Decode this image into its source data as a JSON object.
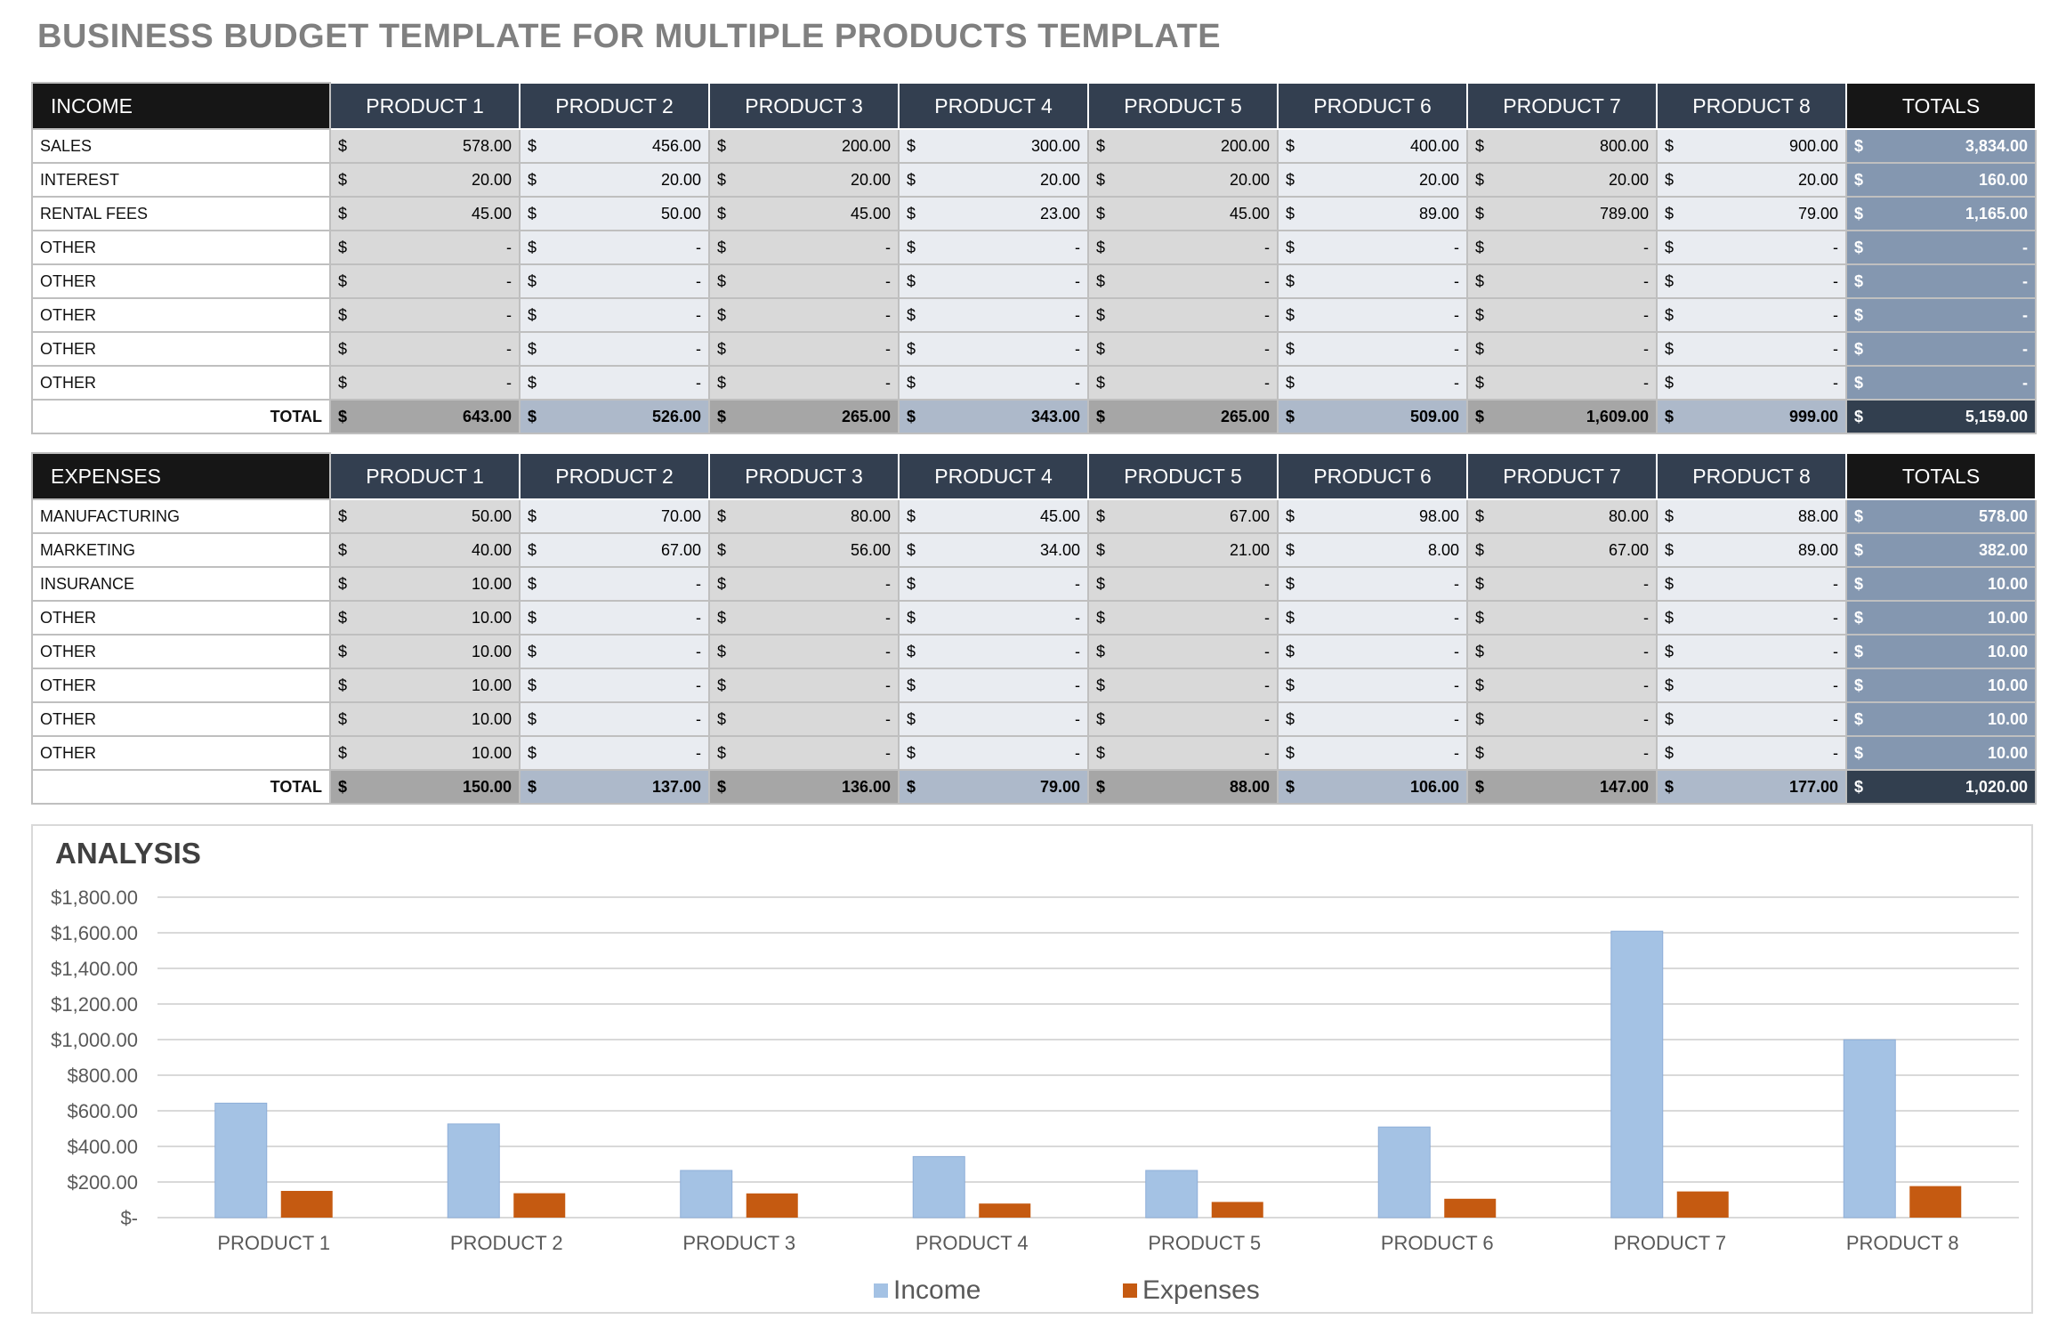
{
  "title": "BUSINESS BUDGET TEMPLATE FOR MULTIPLE PRODUCTS TEMPLATE",
  "columns": [
    "PRODUCT 1",
    "PRODUCT 2",
    "PRODUCT 3",
    "PRODUCT 4",
    "PRODUCT 5",
    "PRODUCT 6",
    "PRODUCT 7",
    "PRODUCT 8"
  ],
  "totals_label": "TOTALS",
  "currency": "$",
  "income": {
    "header": "INCOME",
    "rows": [
      {
        "label": "SALES",
        "values": [
          "578.00",
          "456.00",
          "200.00",
          "300.00",
          "200.00",
          "400.00",
          "800.00",
          "900.00"
        ],
        "total": "3,834.00"
      },
      {
        "label": "INTEREST",
        "values": [
          "20.00",
          "20.00",
          "20.00",
          "20.00",
          "20.00",
          "20.00",
          "20.00",
          "20.00"
        ],
        "total": "160.00"
      },
      {
        "label": "RENTAL FEES",
        "values": [
          "45.00",
          "50.00",
          "45.00",
          "23.00",
          "45.00",
          "89.00",
          "789.00",
          "79.00"
        ],
        "total": "1,165.00"
      },
      {
        "label": "OTHER",
        "values": [
          "-",
          "-",
          "-",
          "-",
          "-",
          "-",
          "-",
          "-"
        ],
        "total": "-"
      },
      {
        "label": "OTHER",
        "values": [
          "-",
          "-",
          "-",
          "-",
          "-",
          "-",
          "-",
          "-"
        ],
        "total": "-"
      },
      {
        "label": "OTHER",
        "values": [
          "-",
          "-",
          "-",
          "-",
          "-",
          "-",
          "-",
          "-"
        ],
        "total": "-"
      },
      {
        "label": "OTHER",
        "values": [
          "-",
          "-",
          "-",
          "-",
          "-",
          "-",
          "-",
          "-"
        ],
        "total": "-"
      },
      {
        "label": "OTHER",
        "values": [
          "-",
          "-",
          "-",
          "-",
          "-",
          "-",
          "-",
          "-"
        ],
        "total": "-"
      }
    ],
    "total_row": {
      "label": "TOTAL",
      "values": [
        "643.00",
        "526.00",
        "265.00",
        "343.00",
        "265.00",
        "509.00",
        "1,609.00",
        "999.00"
      ],
      "total": "5,159.00"
    }
  },
  "expenses": {
    "header": "EXPENSES",
    "rows": [
      {
        "label": "MANUFACTURING",
        "values": [
          "50.00",
          "70.00",
          "80.00",
          "45.00",
          "67.00",
          "98.00",
          "80.00",
          "88.00"
        ],
        "total": "578.00"
      },
      {
        "label": "MARKETING",
        "values": [
          "40.00",
          "67.00",
          "56.00",
          "34.00",
          "21.00",
          "8.00",
          "67.00",
          "89.00"
        ],
        "total": "382.00"
      },
      {
        "label": "INSURANCE",
        "values": [
          "10.00",
          "-",
          "-",
          "-",
          "-",
          "-",
          "-",
          "-"
        ],
        "total": "10.00"
      },
      {
        "label": "OTHER",
        "values": [
          "10.00",
          "-",
          "-",
          "-",
          "-",
          "-",
          "-",
          "-"
        ],
        "total": "10.00"
      },
      {
        "label": "OTHER",
        "values": [
          "10.00",
          "-",
          "-",
          "-",
          "-",
          "-",
          "-",
          "-"
        ],
        "total": "10.00"
      },
      {
        "label": "OTHER",
        "values": [
          "10.00",
          "-",
          "-",
          "-",
          "-",
          "-",
          "-",
          "-"
        ],
        "total": "10.00"
      },
      {
        "label": "OTHER",
        "values": [
          "10.00",
          "-",
          "-",
          "-",
          "-",
          "-",
          "-",
          "-"
        ],
        "total": "10.00"
      },
      {
        "label": "OTHER",
        "values": [
          "10.00",
          "-",
          "-",
          "-",
          "-",
          "-",
          "-",
          "-"
        ],
        "total": "10.00"
      }
    ],
    "total_row": {
      "label": "TOTAL",
      "values": [
        "150.00",
        "137.00",
        "136.00",
        "79.00",
        "88.00",
        "106.00",
        "147.00",
        "177.00"
      ],
      "total": "1,020.00"
    }
  },
  "chart_data": {
    "type": "bar",
    "title": "ANALYSIS",
    "categories": [
      "PRODUCT 1",
      "PRODUCT 2",
      "PRODUCT 3",
      "PRODUCT 4",
      "PRODUCT 5",
      "PRODUCT 6",
      "PRODUCT 7",
      "PRODUCT 8"
    ],
    "series": [
      {
        "name": "Income",
        "values": [
          643,
          526,
          265,
          343,
          265,
          509,
          1609,
          999
        ],
        "color": "#a4c2e4"
      },
      {
        "name": "Expenses",
        "values": [
          150,
          137,
          136,
          79,
          88,
          106,
          147,
          177
        ],
        "color": "#c55a11"
      }
    ],
    "ylim": [
      0,
      1800
    ],
    "yticks": [
      0,
      200,
      400,
      600,
      800,
      1000,
      1200,
      1400,
      1600,
      1800
    ],
    "ytick_labels": [
      "$-",
      "$200.00",
      "$400.00",
      "$600.00",
      "$800.00",
      "$1,000.00",
      "$1,200.00",
      "$1,400.00",
      "$1,600.00",
      "$1,800.00"
    ],
    "grid": true,
    "legend": "bottom"
  }
}
